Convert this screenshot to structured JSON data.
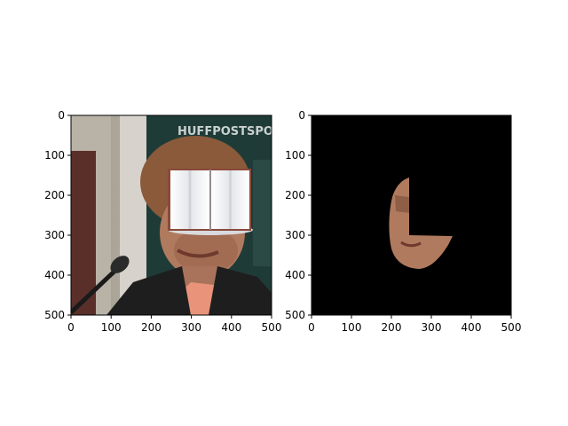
{
  "chart_data": [
    {
      "type": "image",
      "content": "photo of a woman with curly brown hair in a dark jacket speaking at a microphone; an open book icon is overlaid on the upper face; background banner with partial text",
      "overlay_icon": "open-book-icon",
      "background_text": "HUFFPOSTSPORT",
      "xlim": [
        0,
        500
      ],
      "ylim": [
        500,
        0
      ],
      "xticks": [
        0,
        100,
        200,
        300,
        400,
        500
      ],
      "yticks": [
        0,
        100,
        200,
        300,
        400,
        500
      ],
      "xtick_labels": [
        "0",
        "100",
        "200",
        "300",
        "400",
        "500"
      ],
      "ytick_labels": [
        "0",
        "100",
        "200",
        "300",
        "400",
        "500"
      ]
    },
    {
      "type": "image",
      "content": "segmentation mask output: black background with only the lower-left portion of the face region visible",
      "xlim": [
        0,
        500
      ],
      "ylim": [
        500,
        0
      ],
      "xticks": [
        0,
        100,
        200,
        300,
        400,
        500
      ],
      "yticks": [
        0,
        100,
        200,
        300,
        400,
        500
      ],
      "xtick_labels": [
        "0",
        "100",
        "200",
        "300",
        "400",
        "500"
      ],
      "ytick_labels": [
        "0",
        "100",
        "200",
        "300",
        "400",
        "500"
      ]
    }
  ],
  "colors": {
    "background": "#ffffff",
    "mask_background": "#000000",
    "skin": "#b07a5e",
    "hair": "#8a5a3a",
    "jacket": "#1e1e1e",
    "banner": "#1f3b37",
    "book_page": "#f2f3f5",
    "book_cover": "#8b4a3a"
  }
}
